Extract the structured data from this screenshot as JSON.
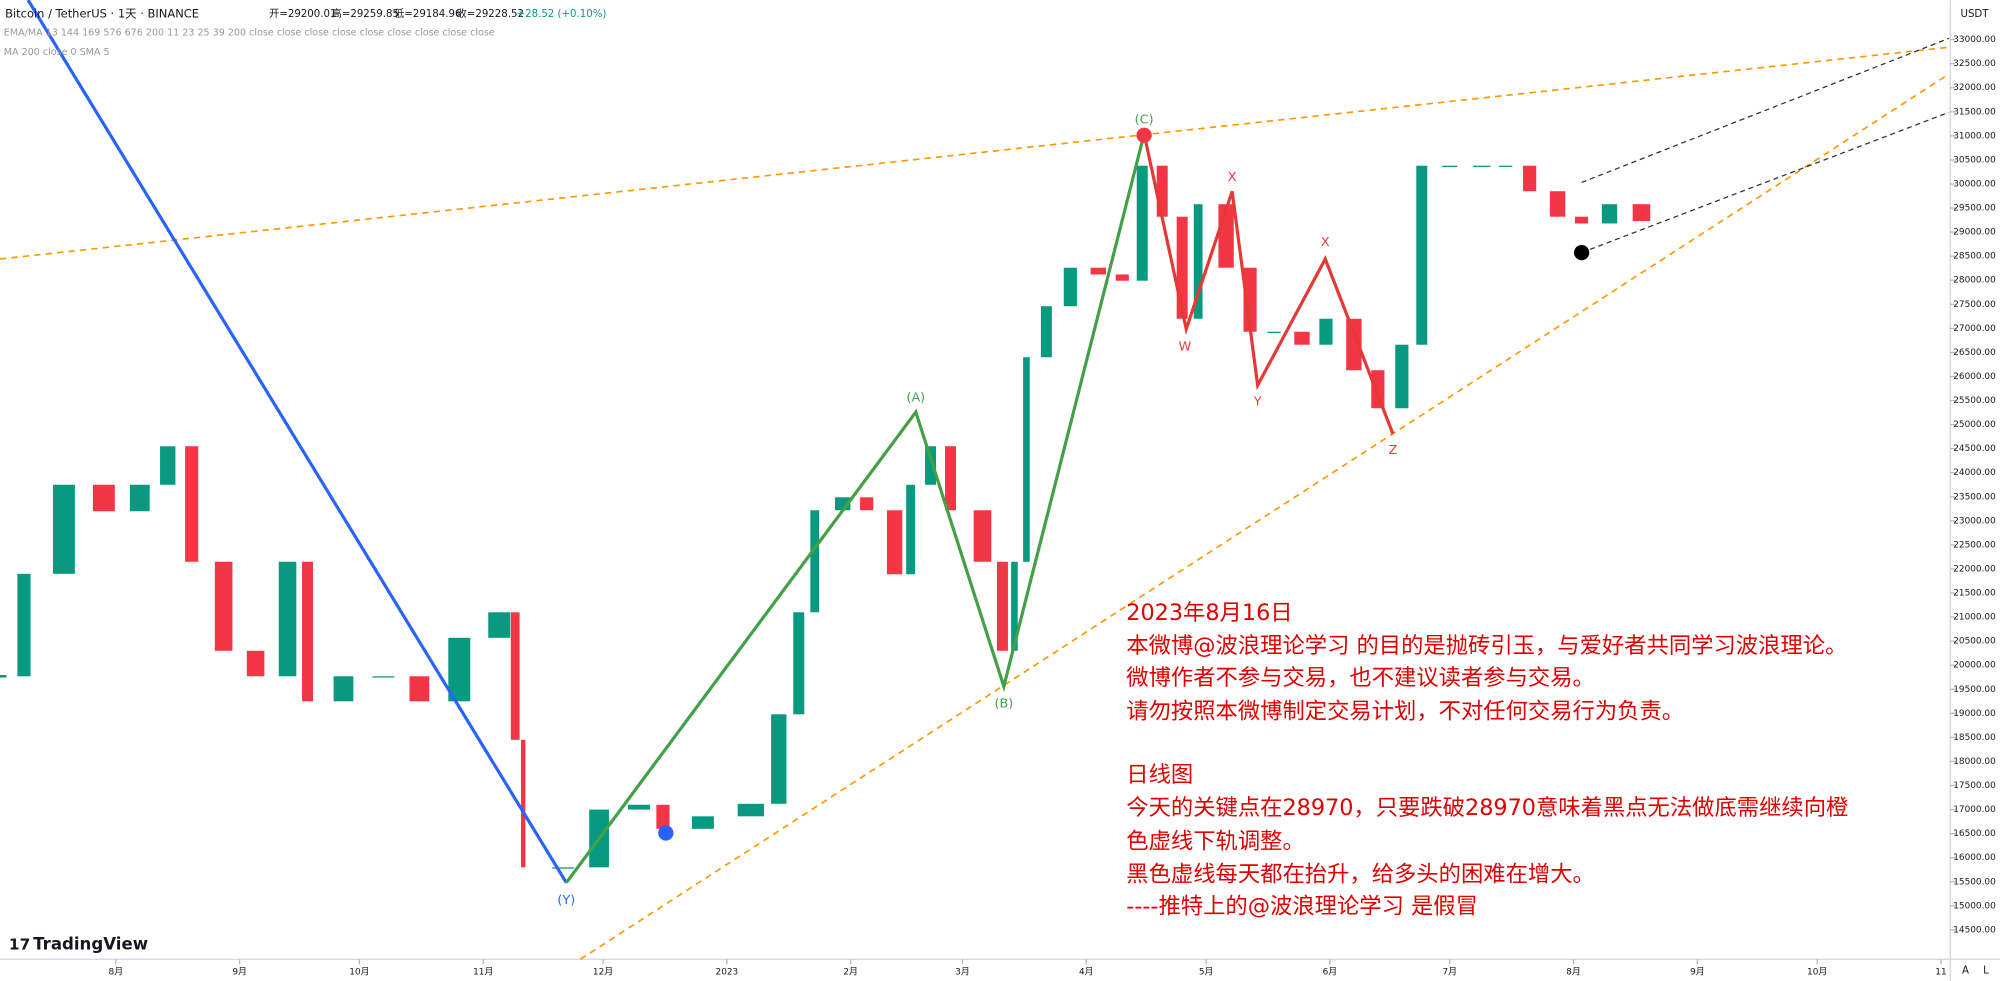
{
  "chart_data": {
    "type": "candlestick",
    "symbol": "Bitcoin / TetherUS · 1天 · BINANCE",
    "ohlc": [
      "开=29200.01",
      "高=29259.85",
      "低=29184.96",
      "收=29228.52",
      "+28.52 (+0.10%)"
    ],
    "indicators": [
      "EMA/MA 13 144 169 576 676 200 11 23 25 39 200 close close close close close close close close close",
      "MA 200 close 0 SMA 5"
    ],
    "currency": "USDT",
    "brand": "TradingView",
    "scale_buttons": [
      "A",
      "L"
    ],
    "x": [
      0,
      6,
      16,
      26,
      35,
      42,
      48,
      56,
      64,
      72,
      77,
      86,
      96,
      105,
      115,
      125,
      129,
      131,
      141,
      150,
      160,
      166,
      176,
      188,
      195,
      200,
      204,
      211,
      217,
      224,
      228,
      233,
      238,
      246,
      251,
      254,
      257,
      262,
      268,
      275,
      281,
      286,
      291,
      296,
      300,
      307,
      313,
      319,
      326,
      332,
      339,
      345,
      351,
      356,
      363,
      371,
      377,
      383,
      390,
      396,
      403,
      411
    ],
    "series": [
      {
        "name": "Bitcoin / TetherUS",
        "up_color": "#089981",
        "down_color": "#f23645",
        "values": [
          19770,
          21900,
          23750,
          23200,
          23750,
          24550,
          22150,
          20300,
          19770,
          22150,
          19250,
          19770,
          19770,
          19250,
          20570,
          21100,
          18450,
          15800,
          15800,
          17000,
          17100,
          16600,
          16860,
          17120,
          18980,
          21100,
          23220,
          23490,
          23220,
          21890,
          23750,
          24550,
          23220,
          22150,
          20300,
          22150,
          26400,
          27460,
          28260,
          28120,
          27990,
          30380,
          29320,
          27200,
          29580,
          28260,
          26930,
          26930,
          26660,
          27200,
          26130,
          25340,
          26660,
          30380,
          30380,
          30380,
          30380,
          29850,
          29320,
          29180,
          29580,
          29230
        ]
      }
    ],
    "xlim": [
      0,
      488
    ],
    "xticks": [
      {
        "value": 29,
        "label": "8月"
      },
      {
        "value": 60,
        "label": "9月"
      },
      {
        "value": 90,
        "label": "10月"
      },
      {
        "value": 121,
        "label": "11月"
      },
      {
        "value": 151,
        "label": "12月"
      },
      {
        "value": 182,
        "label": "2023"
      },
      {
        "value": 213,
        "label": "2月"
      },
      {
        "value": 241,
        "label": "3月"
      },
      {
        "value": 272,
        "label": "4月"
      },
      {
        "value": 302,
        "label": "5月"
      },
      {
        "value": 333,
        "label": "6月"
      },
      {
        "value": 363,
        "label": "7月"
      },
      {
        "value": 394,
        "label": "8月"
      },
      {
        "value": 425,
        "label": "9月"
      },
      {
        "value": 455,
        "label": "10月"
      },
      {
        "value": 486,
        "label": "11"
      }
    ],
    "ylim": [
      13890,
      33822
    ],
    "yticks": [
      {
        "value": 14500,
        "label": "14500.00"
      },
      {
        "value": 15000,
        "label": "15000.00"
      },
      {
        "value": 15500,
        "label": "15500.00"
      },
      {
        "value": 16000,
        "label": "16000.00"
      },
      {
        "value": 16500,
        "label": "16500.00"
      },
      {
        "value": 17000,
        "label": "17000.00"
      },
      {
        "value": 17500,
        "label": "17500.00"
      },
      {
        "value": 18000,
        "label": "18000.00"
      },
      {
        "value": 18500,
        "label": "18500.00"
      },
      {
        "value": 19000,
        "label": "19000.00"
      },
      {
        "value": 19500,
        "label": "19500.00"
      },
      {
        "value": 20000,
        "label": "20000.00"
      },
      {
        "value": 20500,
        "label": "20500.00"
      },
      {
        "value": 21000,
        "label": "21000.00"
      },
      {
        "value": 21500,
        "label": "21500.00"
      },
      {
        "value": 22000,
        "label": "22000.00"
      },
      {
        "value": 22500,
        "label": "22500.00"
      },
      {
        "value": 23000,
        "label": "23000.00"
      },
      {
        "value": 23500,
        "label": "23500.00"
      },
      {
        "value": 24000,
        "label": "24000.00"
      },
      {
        "value": 24500,
        "label": "24500.00"
      },
      {
        "value": 25000,
        "label": "25000.00"
      },
      {
        "value": 25500,
        "label": "25500.00"
      },
      {
        "value": 26000,
        "label": "26000.00"
      },
      {
        "value": 26500,
        "label": "26500.00"
      },
      {
        "value": 27000,
        "label": "27000.00"
      },
      {
        "value": 27500,
        "label": "27500.00"
      },
      {
        "value": 28000,
        "label": "28000.00"
      },
      {
        "value": 28500,
        "label": "28500.00"
      },
      {
        "value": 29000,
        "label": "29000.00"
      },
      {
        "value": 29500,
        "label": "29500.00"
      },
      {
        "value": 30000,
        "label": "30000.00"
      },
      {
        "value": 30500,
        "label": "30500.00"
      },
      {
        "value": 31000,
        "label": "31000.00"
      },
      {
        "value": 31500,
        "label": "31500.00"
      },
      {
        "value": 32000,
        "label": "32000.00"
      },
      {
        "value": 32500,
        "label": "32500.00"
      },
      {
        "value": 33000,
        "label": "33000.00"
      }
    ],
    "wave_labels": [
      "(Y)",
      "(A)",
      "(B)",
      "(C)",
      "W",
      "X",
      "Y",
      "X",
      "Z"
    ],
    "annotation": [
      "2023年8月16日",
      "本微博@波浪理论学习 的目的是抛砖引玉，与爱好者共同学习波浪理论。",
      "微博作者不参与交易，也不建议读者参与交易。",
      "请勿按照本微博制定交易计划，不对任何交易行为负责。",
      "日线图",
      "今天的关键点在28970，只要跌破28970意味着黑点无法做底需继续向橙",
      "色虚线下轨调整。",
      "黑色虚线每天都在抬升，给多头的困难在增大。",
      "----推特上的@波浪理论学习 是假冒"
    ]
  }
}
